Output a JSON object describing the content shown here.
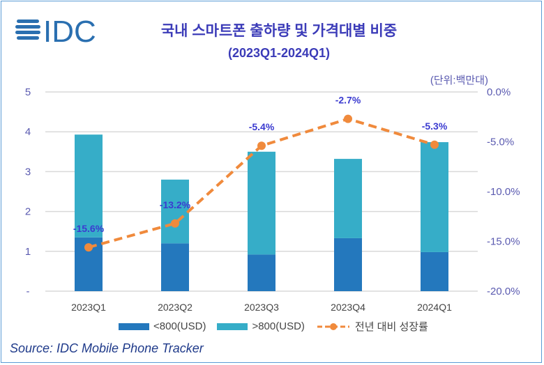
{
  "logo": "IDC",
  "title": "국내 스마트폰 출하량 및 가격대별 비중",
  "subtitle": "(2023Q1-2024Q1)",
  "unit": "(단위:백만대)",
  "source": "Source: IDC Mobile Phone Tracker",
  "chart_data": {
    "type": "bar",
    "categories": [
      "2023Q1",
      "2023Q2",
      "2023Q3",
      "2023Q4",
      "2024Q1"
    ],
    "series": [
      {
        "name": "<800(USD)",
        "type": "stacked-bar",
        "axis": "left",
        "color": "#2478bd",
        "values": [
          1.35,
          1.2,
          0.92,
          1.33,
          0.98
        ]
      },
      {
        "name": ">800(USD)",
        "type": "stacked-bar",
        "axis": "left",
        "color": "#36adc8",
        "values": [
          2.58,
          1.6,
          2.58,
          1.99,
          2.76
        ]
      },
      {
        "name": "전년 대비 성장률",
        "type": "line",
        "axis": "right",
        "color": "#f08a3c",
        "values": [
          -15.6,
          -13.2,
          -5.4,
          -2.7,
          -5.3
        ],
        "labels": [
          "-15.6%",
          "-13.2%",
          "-5.4%",
          "-2.7%",
          "-5.3%"
        ]
      }
    ],
    "y_left": {
      "range": [
        0,
        5
      ],
      "ticks": [
        "-",
        "1",
        "2",
        "3",
        "4",
        "5"
      ]
    },
    "y_right": {
      "range": [
        -20,
        0
      ],
      "ticks": [
        "-20.0%",
        "-15.0%",
        "-10.0%",
        "-5.0%",
        "0.0%"
      ]
    },
    "grid": true,
    "legend": "bottom"
  }
}
